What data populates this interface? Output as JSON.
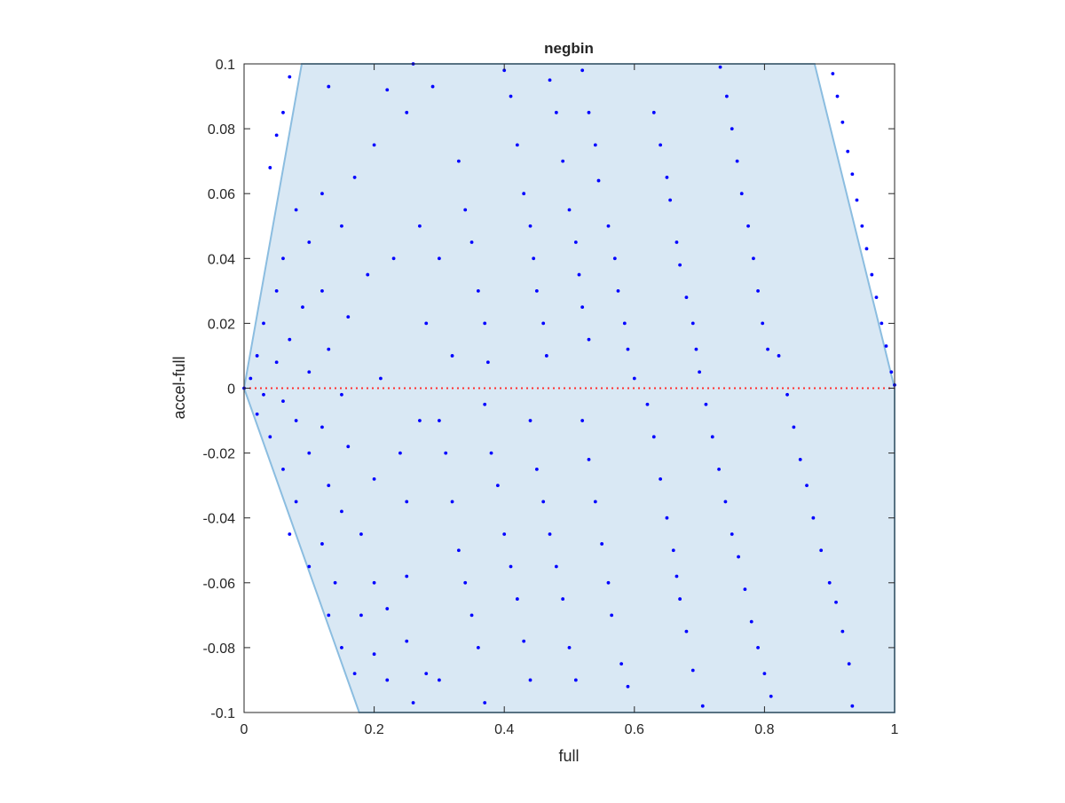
{
  "chart_data": {
    "type": "scatter",
    "title": "negbin",
    "x_label": "full",
    "y_label": "accel-full",
    "xlim": [
      0,
      1
    ],
    "ylim": [
      -0.1,
      0.1
    ],
    "xticks": [
      0,
      0.2,
      0.4,
      0.6,
      0.8,
      1
    ],
    "yticks": [
      -0.1,
      -0.08,
      -0.06,
      -0.04,
      -0.02,
      0,
      0.02,
      0.04,
      0.06,
      0.08,
      0.1
    ],
    "region": {
      "x": [
        0,
        0.0887,
        0.877,
        1,
        1,
        0.177
      ],
      "y": [
        0,
        0.1,
        0.1,
        0,
        -0.1,
        -0.1
      ],
      "color": "#d9e8f4",
      "edge_color": "#8bbde0"
    },
    "reference_line": {
      "y": 0,
      "color": "#ff3030"
    },
    "series": [
      {
        "color": "#0000ff",
        "x": [
          0.905,
          0.912,
          0.92,
          0.928,
          0.935,
          0.942,
          0.95,
          0.957,
          0.965,
          0.972,
          0.98,
          0.987,
          0.995,
          1,
          0.732,
          0.742,
          0.75,
          0.758,
          0.765,
          0.775,
          0.783,
          0.79,
          0.797,
          0.805,
          0.822,
          0.835,
          0.845,
          0.855,
          0.865,
          0.875,
          0.887,
          0.9,
          0.91,
          0.92,
          0.93,
          0.935,
          0.71,
          0.72,
          0.73,
          0.74,
          0.75,
          0.76,
          0.77,
          0.78,
          0.79,
          0.8,
          0.81,
          0.63,
          0.64,
          0.65,
          0.655,
          0.665,
          0.67,
          0.68,
          0.69,
          0.695,
          0.7,
          0.62,
          0.63,
          0.64,
          0.65,
          0.66,
          0.665,
          0.67,
          0.68,
          0.69,
          0.705,
          0.52,
          0.53,
          0.54,
          0.545,
          0.56,
          0.57,
          0.575,
          0.585,
          0.59,
          0.6,
          0.47,
          0.48,
          0.49,
          0.5,
          0.51,
          0.515,
          0.52,
          0.53,
          0.4,
          0.41,
          0.42,
          0.43,
          0.44,
          0.445,
          0.45,
          0.46,
          0.465,
          0.52,
          0.53,
          0.54,
          0.55,
          0.56,
          0.565,
          0.58,
          0.59,
          0.44,
          0.45,
          0.46,
          0.47,
          0.48,
          0.49,
          0.5,
          0.51,
          0.37,
          0.38,
          0.39,
          0.4,
          0.41,
          0.42,
          0.43,
          0.44,
          0.33,
          0.34,
          0.35,
          0.36,
          0.37,
          0.375,
          0.3,
          0.31,
          0.32,
          0.33,
          0.34,
          0.35,
          0.36,
          0.37,
          0.26,
          0.29,
          0.22,
          0.13,
          0.07,
          0.06,
          0.05,
          0.04,
          0.25,
          0.2,
          0.17,
          0.12,
          0.08,
          0.15,
          0.1,
          0.06,
          0.23,
          0.19,
          0.12,
          0.05,
          0.09,
          0.16,
          0.03,
          0.07,
          0.13,
          0.02,
          0.05,
          0.1,
          0.01,
          0.03,
          0.06,
          0.15,
          0.21,
          0.02,
          0.08,
          0.12,
          0.04,
          0.1,
          0.16,
          0.06,
          0.13,
          0.2,
          0.08,
          0.15,
          0.25,
          0.07,
          0.12,
          0.18,
          0.1,
          0.14,
          0.2,
          0.25,
          0.13,
          0.18,
          0.22,
          0.15,
          0.2,
          0.25,
          0.17,
          0.22,
          0.28,
          0.26,
          0.3,
          0.24,
          0.27,
          0.28,
          0.27,
          0.3,
          0.32,
          0.0
        ],
        "values": [
          0.097,
          0.09,
          0.082,
          0.073,
          0.066,
          0.058,
          0.05,
          0.043,
          0.035,
          0.028,
          0.02,
          0.013,
          0.005,
          0.001,
          0.099,
          0.09,
          0.08,
          0.07,
          0.06,
          0.05,
          0.04,
          0.03,
          0.02,
          0.012,
          0.01,
          -0.002,
          -0.012,
          -0.022,
          -0.03,
          -0.04,
          -0.05,
          -0.06,
          -0.066,
          -0.075,
          -0.085,
          -0.098,
          -0.005,
          -0.015,
          -0.025,
          -0.035,
          -0.045,
          -0.052,
          -0.062,
          -0.072,
          -0.08,
          -0.088,
          -0.095,
          0.085,
          0.075,
          0.065,
          0.058,
          0.045,
          0.038,
          0.028,
          0.02,
          0.012,
          0.005,
          -0.005,
          -0.015,
          -0.028,
          -0.04,
          -0.05,
          -0.058,
          -0.065,
          -0.075,
          -0.087,
          -0.098,
          0.098,
          0.085,
          0.075,
          0.064,
          0.05,
          0.04,
          0.03,
          0.02,
          0.012,
          0.003,
          0.095,
          0.085,
          0.07,
          0.055,
          0.045,
          0.035,
          0.025,
          0.015,
          0.098,
          0.09,
          0.075,
          0.06,
          0.05,
          0.04,
          0.03,
          0.02,
          0.01,
          -0.01,
          -0.022,
          -0.035,
          -0.048,
          -0.06,
          -0.07,
          -0.085,
          -0.092,
          -0.01,
          -0.025,
          -0.035,
          -0.045,
          -0.055,
          -0.065,
          -0.08,
          -0.09,
          -0.005,
          -0.02,
          -0.03,
          -0.045,
          -0.055,
          -0.065,
          -0.078,
          -0.09,
          0.07,
          0.055,
          0.045,
          0.03,
          0.02,
          0.008,
          -0.01,
          -0.02,
          -0.035,
          -0.05,
          -0.06,
          -0.07,
          -0.08,
          -0.097,
          0.1,
          0.093,
          0.092,
          0.093,
          0.096,
          0.085,
          0.078,
          0.068,
          0.085,
          0.075,
          0.065,
          0.06,
          0.055,
          0.05,
          0.045,
          0.04,
          0.04,
          0.035,
          0.03,
          0.03,
          0.025,
          0.022,
          0.02,
          0.015,
          0.012,
          0.01,
          0.008,
          0.005,
          0.003,
          -0.002,
          -0.004,
          -0.002,
          0.003,
          -0.008,
          -0.01,
          -0.012,
          -0.015,
          -0.02,
          -0.018,
          -0.025,
          -0.03,
          -0.028,
          -0.035,
          -0.038,
          -0.035,
          -0.045,
          -0.048,
          -0.045,
          -0.055,
          -0.06,
          -0.06,
          -0.058,
          -0.07,
          -0.07,
          -0.068,
          -0.08,
          -0.082,
          -0.078,
          -0.088,
          -0.09,
          -0.088,
          -0.097,
          -0.09,
          -0.02,
          -0.01,
          0.02,
          0.05,
          0.04,
          0.01,
          0.0
        ]
      }
    ]
  }
}
